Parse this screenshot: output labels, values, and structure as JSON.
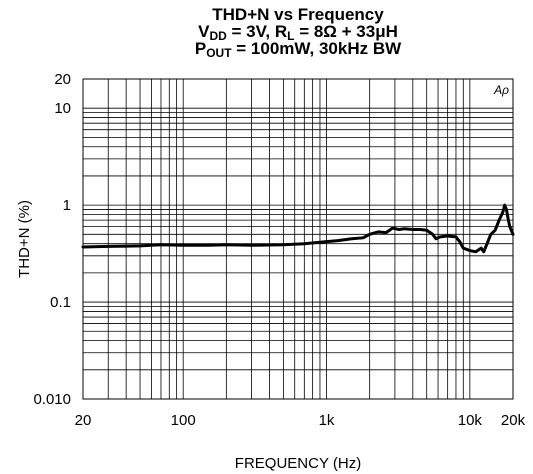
{
  "title": {
    "line1": "THD+N vs Frequency",
    "line2_a": "V",
    "line2_sub_a": "DD",
    "line2_b": " = 3V, R",
    "line2_sub_b": "L",
    "line2_c": " = 8Ω + 33μH",
    "line3_a": "P",
    "line3_sub_a": "OUT",
    "line3_b": " = 100mW, 30kHz BW"
  },
  "watermark": "Aρ",
  "chart_data": {
    "type": "line",
    "xlabel": "FREQUENCY (Hz)",
    "ylabel": "THD+N (%)",
    "x_scale": "log",
    "y_scale": "log",
    "xlim": [
      20,
      20000
    ],
    "ylim": [
      0.01,
      20
    ],
    "grid": true,
    "x_ticks": [
      {
        "value": 20,
        "label": "20"
      },
      {
        "value": 100,
        "label": "100"
      },
      {
        "value": 1000,
        "label": "1k"
      },
      {
        "value": 10000,
        "label": "10k"
      },
      {
        "value": 20000,
        "label": "20k"
      }
    ],
    "y_ticks": [
      {
        "value": 0.01,
        "label": "0.010"
      },
      {
        "value": 0.1,
        "label": "0.1"
      },
      {
        "value": 1,
        "label": "1"
      },
      {
        "value": 10,
        "label": "10"
      },
      {
        "value": 20,
        "label": "20"
      }
    ],
    "series": [
      {
        "color": "#000000",
        "x": [
          20,
          30,
          50,
          70,
          100,
          150,
          200,
          300,
          500,
          700,
          1000,
          1200,
          1500,
          1800,
          2000,
          2300,
          2600,
          2900,
          3200,
          3500,
          4000,
          4500,
          5000,
          5500,
          5800,
          6200,
          7000,
          8000,
          8500,
          9000,
          10000,
          11000,
          12000,
          12500,
          13000,
          14000,
          15000,
          16000,
          17000,
          17500,
          18000,
          18500,
          19000,
          20000
        ],
        "y": [
          0.37,
          0.375,
          0.38,
          0.39,
          0.385,
          0.385,
          0.39,
          0.385,
          0.39,
          0.4,
          0.42,
          0.43,
          0.45,
          0.46,
          0.5,
          0.53,
          0.52,
          0.58,
          0.56,
          0.57,
          0.56,
          0.56,
          0.55,
          0.5,
          0.45,
          0.47,
          0.48,
          0.47,
          0.42,
          0.36,
          0.34,
          0.33,
          0.36,
          0.33,
          0.38,
          0.5,
          0.55,
          0.7,
          0.85,
          1.0,
          0.9,
          0.72,
          0.6,
          0.5
        ]
      }
    ]
  }
}
